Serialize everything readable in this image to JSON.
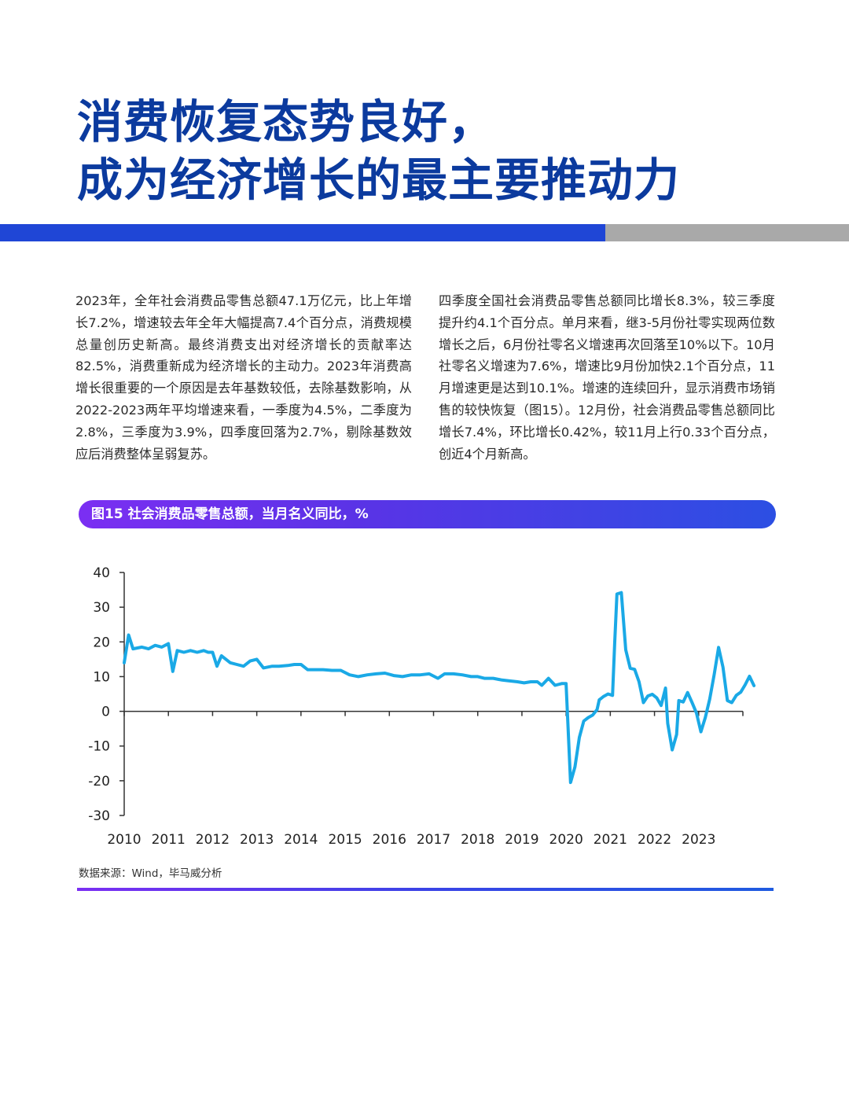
{
  "header": {
    "title_line1": "消费恢复态势良好，",
    "title_line2": "成为经济增长的最主要推动力"
  },
  "colors": {
    "title": "#0b3a9e",
    "accent_bar": "#1f46d6",
    "gray_bar": "#a9a9a9",
    "line": "#1aa9e6"
  },
  "body": {
    "left_paragraph": "2023年，全年社会消费品零售总额47.1万亿元，比上年增长7.2%，增速较去年全年大幅提高7.4个百分点，消费规模总量创历史新高。最终消费支出对经济增长的贡献率达82.5%，消费重新成为经济增长的主动力。2023年消费高增长很重要的一个原因是去年基数较低，去除基数影响，从2022-2023两年平均增速来看，一季度为4.5%，二季度为2.8%，三季度为3.9%，四季度回落为2.7%，剔除基数效应后消费整体呈弱复苏。",
    "right_paragraph": "四季度全国社会消费品零售总额同比增长8.3%，较三季度提升约4.1个百分点。单月来看，继3-5月份社零实现两位数增长之后，6月份社零名义增速再次回落至10%以下。10月社零名义增速为7.6%，增速比9月份加快2.1个百分点，11月增速更是达到10.1%。增速的连续回升，显示消费市场销售的较快恢复（图15）。12月份，社会消费品零售总额同比增长7.4%，环比增长0.42%，较11月上行0.33个百分点，创近4个月新高。"
  },
  "figure": {
    "title": "图15 社会消费品零售总额，当月名义同比，%",
    "source": "数据来源：Wind，毕马威分析"
  },
  "chart_data": {
    "type": "line",
    "title": "图15 社会消费品零售总额，当月名义同比，%",
    "xlabel": "",
    "ylabel": "",
    "ylim": [
      -30,
      40
    ],
    "yticks": [
      40,
      30,
      20,
      10,
      0,
      -10,
      -20,
      -30
    ],
    "xlim": [
      2010,
      2024
    ],
    "xticks": [
      "2010",
      "2011",
      "2012",
      "2013",
      "2014",
      "2015",
      "2016",
      "2017",
      "2018",
      "2019",
      "2020",
      "2021",
      "2022",
      "2023"
    ],
    "grid": false,
    "legend": "none",
    "series": [
      {
        "points": [
          [
            2010.0,
            14
          ],
          [
            2010.1,
            22
          ],
          [
            2010.2,
            18
          ],
          [
            2010.4,
            18.5
          ],
          [
            2010.55,
            18
          ],
          [
            2010.7,
            19
          ],
          [
            2010.85,
            18.5
          ],
          [
            2011.0,
            19.5
          ],
          [
            2011.1,
            11.5
          ],
          [
            2011.2,
            17.5
          ],
          [
            2011.35,
            17
          ],
          [
            2011.5,
            17.5
          ],
          [
            2011.65,
            17
          ],
          [
            2011.8,
            17.5
          ],
          [
            2011.9,
            17
          ],
          [
            2012.0,
            17
          ],
          [
            2012.1,
            13
          ],
          [
            2012.2,
            16
          ],
          [
            2012.4,
            14
          ],
          [
            2012.55,
            13.5
          ],
          [
            2012.7,
            13
          ],
          [
            2012.85,
            14.5
          ],
          [
            2013.0,
            15
          ],
          [
            2013.15,
            12.5
          ],
          [
            2013.35,
            13
          ],
          [
            2013.5,
            13
          ],
          [
            2013.7,
            13.2
          ],
          [
            2013.85,
            13.5
          ],
          [
            2014.0,
            13.5
          ],
          [
            2014.15,
            12
          ],
          [
            2014.3,
            12
          ],
          [
            2014.5,
            12
          ],
          [
            2014.7,
            11.8
          ],
          [
            2014.9,
            11.8
          ],
          [
            2015.1,
            10.5
          ],
          [
            2015.3,
            10
          ],
          [
            2015.5,
            10.5
          ],
          [
            2015.7,
            10.8
          ],
          [
            2015.9,
            11
          ],
          [
            2016.1,
            10.3
          ],
          [
            2016.3,
            10
          ],
          [
            2016.5,
            10.5
          ],
          [
            2016.7,
            10.5
          ],
          [
            2016.9,
            10.8
          ],
          [
            2017.1,
            9.5
          ],
          [
            2017.25,
            10.8
          ],
          [
            2017.45,
            10.8
          ],
          [
            2017.65,
            10.5
          ],
          [
            2017.85,
            10
          ],
          [
            2018.0,
            10
          ],
          [
            2018.15,
            9.5
          ],
          [
            2018.35,
            9.5
          ],
          [
            2018.55,
            9
          ],
          [
            2018.7,
            8.8
          ],
          [
            2018.9,
            8.5
          ],
          [
            2019.05,
            8.2
          ],
          [
            2019.2,
            8.5
          ],
          [
            2019.35,
            8.5
          ],
          [
            2019.45,
            7.5
          ],
          [
            2019.6,
            9.5
          ],
          [
            2019.75,
            7.5
          ],
          [
            2019.9,
            8
          ],
          [
            2020.0,
            8
          ],
          [
            2020.1,
            -20.5
          ],
          [
            2020.2,
            -16
          ],
          [
            2020.3,
            -7.5
          ],
          [
            2020.4,
            -2.8
          ],
          [
            2020.5,
            -1.8
          ],
          [
            2020.6,
            -1.1
          ],
          [
            2020.7,
            0.5
          ],
          [
            2020.75,
            3.3
          ],
          [
            2020.85,
            4.3
          ],
          [
            2020.95,
            5
          ],
          [
            2021.05,
            4.6
          ],
          [
            2021.1,
            20
          ],
          [
            2021.15,
            33.8
          ],
          [
            2021.25,
            34.2
          ],
          [
            2021.35,
            17.7
          ],
          [
            2021.45,
            12.4
          ],
          [
            2021.55,
            12.1
          ],
          [
            2021.65,
            8.5
          ],
          [
            2021.75,
            2.5
          ],
          [
            2021.85,
            4.4
          ],
          [
            2021.95,
            4.9
          ],
          [
            2022.05,
            3.9
          ],
          [
            2022.15,
            1.7
          ],
          [
            2022.25,
            6.7
          ],
          [
            2022.3,
            -3.5
          ],
          [
            2022.4,
            -11.1
          ],
          [
            2022.5,
            -6.7
          ],
          [
            2022.55,
            3.1
          ],
          [
            2022.65,
            2.7
          ],
          [
            2022.75,
            5.4
          ],
          [
            2022.85,
            2.5
          ],
          [
            2022.95,
            -0.5
          ],
          [
            2023.05,
            -5.9
          ],
          [
            2023.15,
            -1.8
          ],
          [
            2023.25,
            3.5
          ],
          [
            2023.35,
            10.6
          ],
          [
            2023.45,
            18.4
          ],
          [
            2023.55,
            12.7
          ],
          [
            2023.65,
            3.1
          ],
          [
            2023.75,
            2.5
          ],
          [
            2023.85,
            4.6
          ],
          [
            2023.95,
            5.5
          ],
          [
            2024.05,
            7.6
          ],
          [
            2024.15,
            10.1
          ],
          [
            2024.25,
            7.4
          ]
        ]
      }
    ]
  }
}
